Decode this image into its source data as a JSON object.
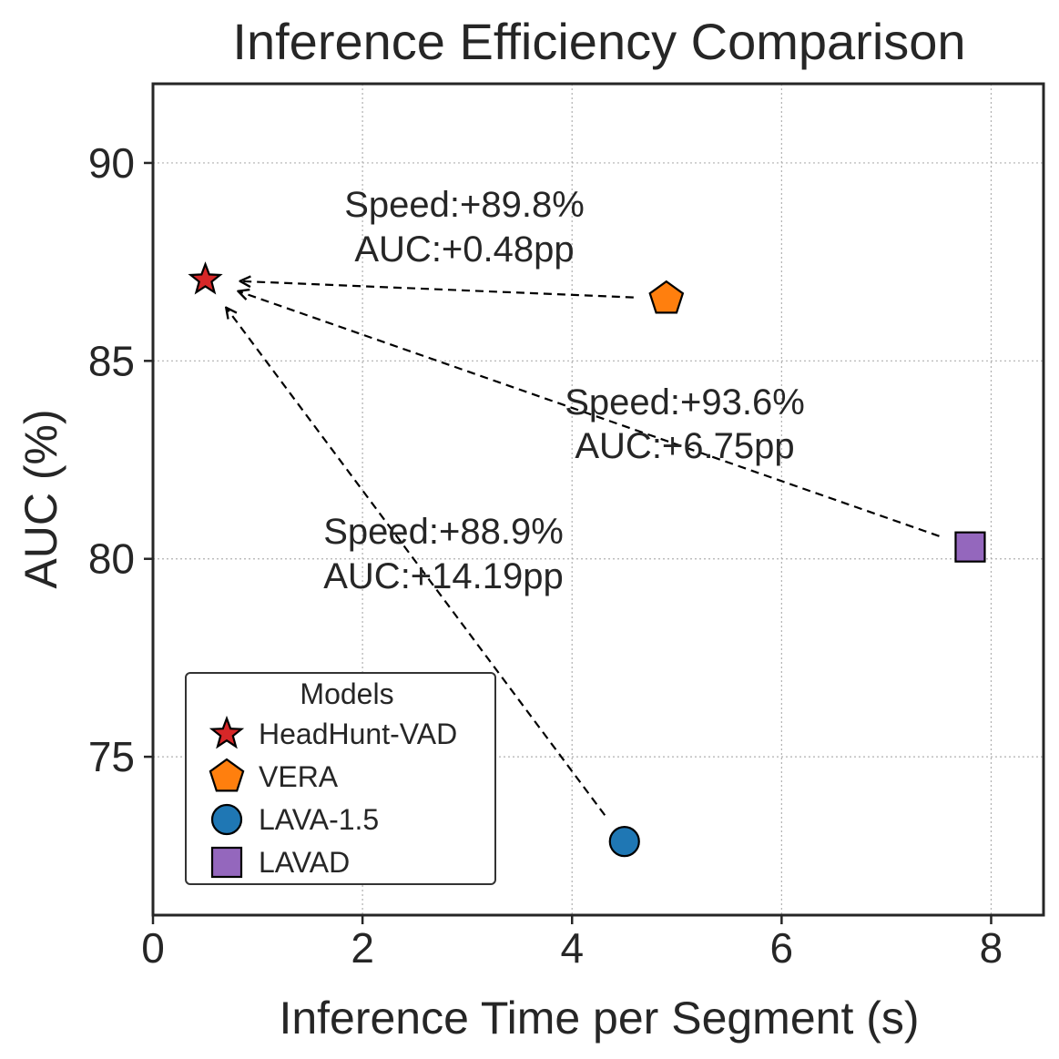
{
  "chart_data": {
    "type": "scatter",
    "title": "Inference Efficiency Comparison",
    "xlabel": "Inference Time per Segment (s)",
    "ylabel": "AUC (%)",
    "xlim": [
      0,
      8.5
    ],
    "ylim": [
      71,
      92
    ],
    "xticks": [
      0,
      2,
      4,
      6,
      8
    ],
    "yticks": [
      75,
      80,
      85,
      90
    ],
    "grid": true,
    "legend": {
      "title": "Models",
      "placement": "lower-left"
    },
    "series": [
      {
        "name": "HeadHunt-VAD",
        "marker": "star",
        "color": "#d62728",
        "x": 0.5,
        "y": 87.05
      },
      {
        "name": "VERA",
        "marker": "pentagon",
        "color": "#ff7f0e",
        "x": 4.9,
        "y": 86.57
      },
      {
        "name": "LAVA-1.5",
        "marker": "circle",
        "color": "#1f77b4",
        "x": 4.5,
        "y": 72.86
      },
      {
        "name": "LAVAD",
        "marker": "square",
        "color": "#9467bd",
        "x": 7.8,
        "y": 80.3
      }
    ],
    "annotations": [
      {
        "from": "VERA",
        "to": "HeadHunt-VAD",
        "line1": "Speed:+89.8%",
        "line2": "AUC:+0.48pp"
      },
      {
        "from": "LAVAD",
        "to": "HeadHunt-VAD",
        "line1": "Speed:+93.6%",
        "line2": "AUC:+6.75pp"
      },
      {
        "from": "LAVA-1.5",
        "to": "HeadHunt-VAD",
        "line1": "Speed:+88.9%",
        "line2": "AUC:+14.19pp"
      }
    ]
  }
}
